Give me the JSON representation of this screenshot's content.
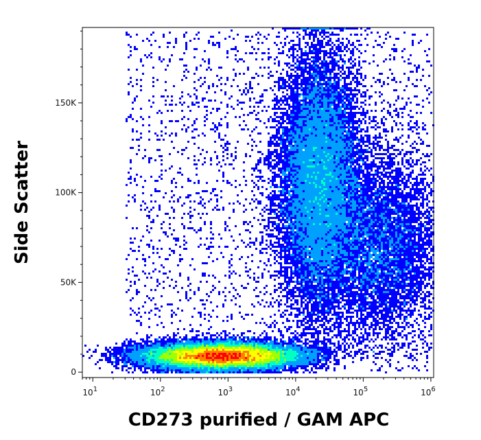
{
  "chart_data": {
    "type": "scatter",
    "subtype": "density-dot-plot",
    "xlabel": "CD273 purified / GAM APC",
    "ylabel": "Side Scatter",
    "x_scale": "log",
    "xlim": [
      7,
      1100000
    ],
    "ylim": [
      -3000,
      192000
    ],
    "x_ticks": [
      {
        "base": "10",
        "exp": "1",
        "value": 10
      },
      {
        "base": "10",
        "exp": "2",
        "value": 100
      },
      {
        "base": "10",
        "exp": "3",
        "value": 1000
      },
      {
        "base": "10",
        "exp": "4",
        "value": 10000
      },
      {
        "base": "10",
        "exp": "5",
        "value": 100000
      },
      {
        "base": "10",
        "exp": "6",
        "value": 1000000
      }
    ],
    "y_ticks": [
      {
        "label": "0",
        "value": 0
      },
      {
        "label": "50K",
        "value": 50000
      },
      {
        "label": "100K",
        "value": 100000
      },
      {
        "label": "150K",
        "value": 150000
      }
    ],
    "populations": [
      {
        "name": "negative cluster",
        "x_log_center": 2.9,
        "x_log_spread": 0.55,
        "y_center": 9000,
        "y_spread": 3500,
        "weight": 0.55
      },
      {
        "name": "positive SSC-high cluster",
        "x_log_center": 4.35,
        "x_log_spread": 0.3,
        "y_center": 105000,
        "y_spread": 35000,
        "weight": 0.3
      },
      {
        "name": "bright tail",
        "x_log_center": 5.3,
        "x_log_spread": 0.4,
        "y_center": 70000,
        "y_spread": 25000,
        "weight": 0.1
      },
      {
        "name": "background",
        "weight": 0.05
      }
    ],
    "colormap": [
      "#0000ff",
      "#00a0ff",
      "#00ffc0",
      "#a0ff00",
      "#ffff00",
      "#ff8000",
      "#ff0000"
    ]
  }
}
